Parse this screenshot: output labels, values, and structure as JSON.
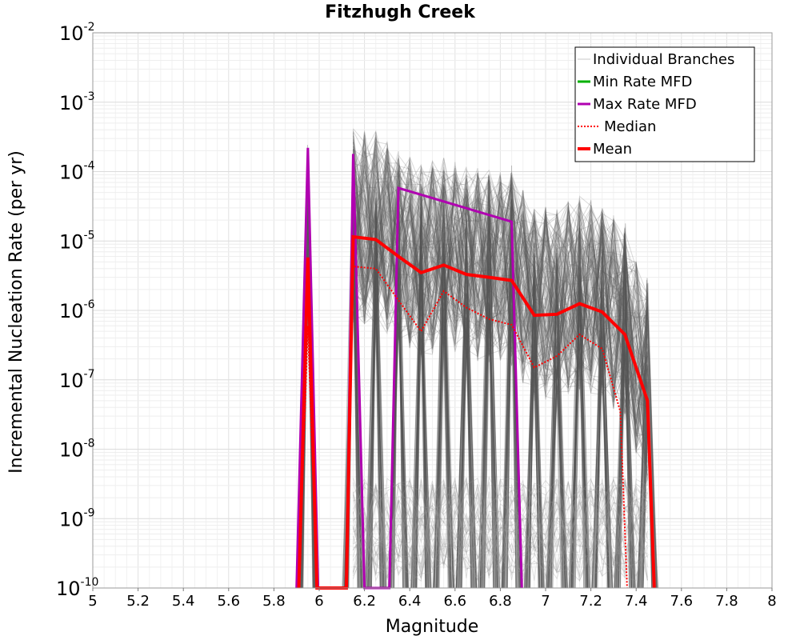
{
  "chart_data": {
    "type": "line",
    "title": "Fitzhugh Creek",
    "xlabel": "Magnitude",
    "ylabel": "Incremental Nucleation Rate (per yr)",
    "xlim": [
      5,
      8
    ],
    "ylim": [
      1e-10,
      0.01
    ],
    "yscale": "log",
    "grid": true,
    "xticks": [
      5,
      5.2,
      5.4,
      5.6,
      5.8,
      6,
      6.2,
      6.4,
      6.6,
      6.8,
      7,
      7.2,
      7.4,
      7.6,
      7.8,
      8
    ],
    "xtick_labels": [
      "5",
      "5.2",
      "5.4",
      "5.6",
      "5.8",
      "6",
      "6.2",
      "6.4",
      "6.6",
      "6.8",
      "7",
      "7.2",
      "7.4",
      "7.6",
      "7.8",
      "8"
    ],
    "yticks": [
      {
        "value": 0.01,
        "base": "10",
        "exp": "-2"
      },
      {
        "value": 0.001,
        "base": "10",
        "exp": "-3"
      },
      {
        "value": 0.0001,
        "base": "10",
        "exp": "-4"
      },
      {
        "value": 1e-05,
        "base": "10",
        "exp": "-5"
      },
      {
        "value": 1e-06,
        "base": "10",
        "exp": "-6"
      },
      {
        "value": 1e-07,
        "base": "10",
        "exp": "-7"
      },
      {
        "value": 1e-08,
        "base": "10",
        "exp": "-8"
      },
      {
        "value": 1e-09,
        "base": "10",
        "exp": "-9"
      },
      {
        "value": 1e-10,
        "base": "10",
        "exp": "-10"
      }
    ],
    "legend": {
      "position": "top-right",
      "entries": [
        {
          "label": "Individual Branches",
          "color": "#c8c8c8",
          "style": "thin"
        },
        {
          "label": "Min Rate MFD",
          "color": "#00b000",
          "style": "solid"
        },
        {
          "label": "Max Rate MFD",
          "color": "#b000b0",
          "style": "solid"
        },
        {
          "label": "Median",
          "color": "#ff0000",
          "style": "dotted"
        },
        {
          "label": "Mean",
          "color": "#ff0000",
          "style": "thick"
        }
      ]
    },
    "series": [
      {
        "name": "Max Rate MFD",
        "color": "#b000b0",
        "points": [
          [
            5.9,
            1e-10
          ],
          [
            5.95,
            0.00022
          ],
          [
            5.995,
            1e-10
          ],
          [
            6.12,
            1e-10
          ],
          [
            6.15,
            0.00018
          ],
          [
            6.2,
            1e-10
          ],
          [
            6.31,
            1e-10
          ],
          [
            6.35,
            5.8e-05
          ],
          [
            6.85,
            1.9e-05
          ],
          [
            6.895,
            1e-10
          ]
        ]
      },
      {
        "name": "Median",
        "color": "#ff0000",
        "points": [
          [
            5.91,
            1e-10
          ],
          [
            5.95,
            6e-07
          ],
          [
            5.99,
            1e-10
          ],
          [
            6.12,
            1e-10
          ],
          [
            6.15,
            4.3e-06
          ],
          [
            6.25,
            4e-06
          ],
          [
            6.35,
            1.4e-06
          ],
          [
            6.45,
            5e-07
          ],
          [
            6.55,
            1.9e-06
          ],
          [
            6.65,
            1.1e-06
          ],
          [
            6.75,
            7.5e-07
          ],
          [
            6.85,
            6.2e-07
          ],
          [
            6.95,
            1.5e-07
          ],
          [
            7.05,
            2.2e-07
          ],
          [
            7.15,
            4.5e-07
          ],
          [
            7.25,
            2.8e-07
          ],
          [
            7.33,
            3.5e-08
          ],
          [
            7.36,
            1e-10
          ]
        ]
      },
      {
        "name": "Mean",
        "color": "#ff0000",
        "points": [
          [
            5.91,
            1e-10
          ],
          [
            5.95,
            5.8e-06
          ],
          [
            5.99,
            1e-10
          ],
          [
            6.12,
            1e-10
          ],
          [
            6.15,
            1.15e-05
          ],
          [
            6.25,
            1.05e-05
          ],
          [
            6.35,
            6e-06
          ],
          [
            6.45,
            3.5e-06
          ],
          [
            6.55,
            4.5e-06
          ],
          [
            6.65,
            3.3e-06
          ],
          [
            6.75,
            3e-06
          ],
          [
            6.85,
            2.7e-06
          ],
          [
            6.95,
            8.5e-07
          ],
          [
            7.05,
            8.8e-07
          ],
          [
            7.15,
            1.25e-06
          ],
          [
            7.25,
            9.5e-07
          ],
          [
            7.35,
            4.5e-07
          ],
          [
            7.45,
            5e-08
          ],
          [
            7.48,
            1e-10
          ]
        ]
      }
    ],
    "branch_spikes": [
      {
        "x": 5.95,
        "peak": 0.00025
      },
      {
        "x": 6.15,
        "peak": 0.00022
      },
      {
        "x": 6.25,
        "peak": 0.00016
      },
      {
        "x": 6.35,
        "peak": 0.00012
      },
      {
        "x": 6.45,
        "peak": 7e-05
      },
      {
        "x": 6.55,
        "peak": 7e-05
      },
      {
        "x": 6.65,
        "peak": 5e-05
      },
      {
        "x": 6.75,
        "peak": 0.00014
      },
      {
        "x": 6.85,
        "peak": 0.00013
      },
      {
        "x": 6.95,
        "peak": 1.2e-05
      },
      {
        "x": 7.05,
        "peak": 1e-05
      },
      {
        "x": 7.15,
        "peak": 3.5e-05
      },
      {
        "x": 7.25,
        "peak": 2.7e-05
      },
      {
        "x": 7.35,
        "peak": 2e-05
      },
      {
        "x": 7.45,
        "peak": 3e-06
      }
    ]
  }
}
